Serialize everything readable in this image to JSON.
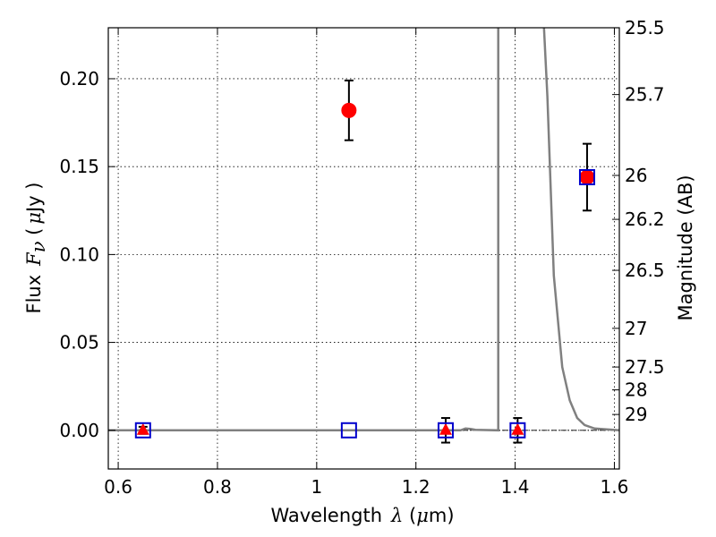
{
  "chart_data": {
    "type": "scatter",
    "title": "",
    "xlabel": {
      "prefix": "Wavelength",
      "symbol": "λ",
      "paren_open": " (",
      "mu": "μ",
      "unit": "m)"
    },
    "ylabel": {
      "prefix": "Flux",
      "symbol": "F",
      "subscript": "ν",
      "paren_open": " (",
      "mu": "μ",
      "unit": "Jy )"
    },
    "y2label": "Magnitude (AB)",
    "xlim": [
      0.58,
      1.61
    ],
    "ylim": [
      -0.022,
      0.229
    ],
    "grid": true,
    "x_ticks": [
      {
        "value": 0.6,
        "label": "0.6"
      },
      {
        "value": 0.8,
        "label": "0.8"
      },
      {
        "value": 1.0,
        "label": "1"
      },
      {
        "value": 1.2,
        "label": "1.2"
      },
      {
        "value": 1.4,
        "label": "1.4"
      },
      {
        "value": 1.6,
        "label": "1.6"
      }
    ],
    "y_ticks": [
      {
        "value": 0.0,
        "label": "0.00"
      },
      {
        "value": 0.05,
        "label": "0.05"
      },
      {
        "value": 0.1,
        "label": "0.10"
      },
      {
        "value": 0.15,
        "label": "0.15"
      },
      {
        "value": 0.2,
        "label": "0.20"
      }
    ],
    "y2_ticks": [
      {
        "flux": 0.229,
        "label": "25.5"
      },
      {
        "flux": 0.191,
        "label": "25.7"
      },
      {
        "flux": 0.145,
        "label": "26"
      },
      {
        "flux": 0.12,
        "label": "26.2"
      },
      {
        "flux": 0.091,
        "label": "26.5"
      },
      {
        "flux": 0.058,
        "label": "27"
      },
      {
        "flux": 0.036,
        "label": "27.5"
      },
      {
        "flux": 0.023,
        "label": "28"
      },
      {
        "flux": 0.009,
        "label": "29"
      }
    ],
    "series": [
      {
        "marker": "circle",
        "color": "#ff0000",
        "points": [
          {
            "x": 1.065,
            "y": 0.182,
            "err": 0.017
          },
          {
            "x": 1.545,
            "y": 0.144,
            "err": 0.019
          }
        ]
      },
      {
        "marker": "triangle",
        "color": "#ff0000",
        "points": [
          {
            "x": 0.65,
            "y": 0.0,
            "err": 0.002
          },
          {
            "x": 1.26,
            "y": 0.0,
            "err": 0.007
          },
          {
            "x": 1.405,
            "y": 0.0,
            "err": 0.007
          }
        ]
      },
      {
        "marker": "square-open",
        "color": "#0000cc",
        "points": [
          {
            "x": 0.65,
            "y": 0.0
          },
          {
            "x": 1.065,
            "y": 0.0
          },
          {
            "x": 1.26,
            "y": 0.0
          },
          {
            "x": 1.405,
            "y": 0.0
          },
          {
            "x": 1.545,
            "y": 0.144
          }
        ]
      },
      {
        "marker": "line",
        "color": "#808080",
        "points": [
          {
            "x": 0.58,
            "y": 0.0
          },
          {
            "x": 1.29,
            "y": 0.0
          },
          {
            "x": 1.3,
            "y": 0.001
          },
          {
            "x": 1.31,
            "y": 0.0008
          },
          {
            "x": 1.32,
            "y": 0.0003
          },
          {
            "x": 1.366,
            "y": 0.0
          },
          {
            "x": 1.366,
            "y": 0.235
          },
          {
            "x": 1.458,
            "y": 0.235
          },
          {
            "x": 1.465,
            "y": 0.19
          },
          {
            "x": 1.478,
            "y": 0.088
          },
          {
            "x": 1.495,
            "y": 0.036
          },
          {
            "x": 1.51,
            "y": 0.017
          },
          {
            "x": 1.525,
            "y": 0.007
          },
          {
            "x": 1.54,
            "y": 0.003
          },
          {
            "x": 1.56,
            "y": 0.001
          },
          {
            "x": 1.61,
            "y": 0.0
          }
        ]
      }
    ]
  }
}
